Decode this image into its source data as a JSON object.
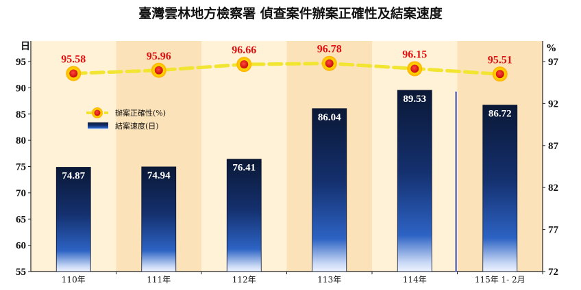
{
  "chart_data": {
    "type": "bar+line",
    "title": "臺灣雲林地方檢察署 偵查案件辦案正確性及結案速度",
    "categories": [
      "110年",
      "111年",
      "112年",
      "113年",
      "114年",
      "115年 1- 2月"
    ],
    "left_axis": {
      "unit": "日",
      "ylim": [
        55,
        95
      ],
      "ticks": [
        55,
        60,
        65,
        70,
        75,
        80,
        85,
        90,
        95
      ]
    },
    "right_axis": {
      "unit": "%",
      "ylim": [
        72,
        97
      ],
      "ticks": [
        72,
        77,
        82,
        87,
        92,
        97
      ]
    },
    "series": [
      {
        "name": "結案速度(日)",
        "type": "bar",
        "axis": "left",
        "values": [
          74.87,
          74.94,
          76.41,
          86.04,
          89.53,
          86.72
        ],
        "labels": [
          "74.87",
          "74.94",
          "76.41",
          "86.04",
          "89.53",
          "86.72"
        ]
      },
      {
        "name": "辦案正確性(%)",
        "type": "line",
        "axis": "right",
        "values": [
          95.58,
          95.96,
          96.66,
          96.78,
          96.15,
          95.51
        ],
        "labels": [
          "95.58",
          "95.96",
          "96.66",
          "96.78",
          "96.15",
          "95.51"
        ]
      }
    ],
    "legend_position": "left-middle",
    "colors": {
      "bar_dark": "#0b1836",
      "bar_mid": "#1e4a9e",
      "bar_light": "#eef3ff",
      "line": "#f2e531",
      "marker": "#e01010",
      "marker_glow": "#ffe600",
      "labels_line": "#e01010",
      "band_a": "#fff2d6",
      "band_b": "#fbe2b8"
    }
  }
}
